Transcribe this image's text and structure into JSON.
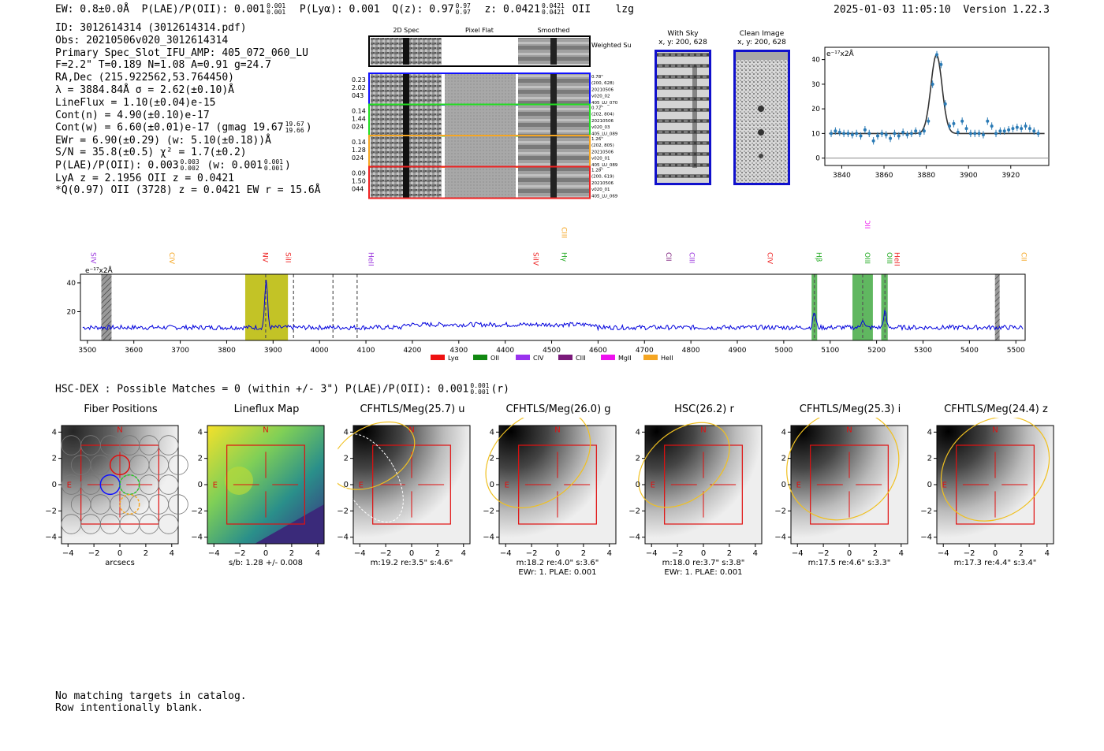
{
  "header": {
    "ew": "EW: 0.8±0.0Å",
    "plae_label": "P(LAE)/P(OII): 0.001",
    "plae_hi": "0.001",
    "plae_lo": "0.001",
    "plya": "P(Lyα): 0.001",
    "qz_label": "Q(z): 0.97",
    "qz_hi": "0.97",
    "qz_lo": "0.97",
    "z_label": "z: 0.0421",
    "z_hi": "0.0421",
    "z_lo": "0.0421",
    "z_line": "OII",
    "tag": "lzg",
    "timestamp": "2025-01-03 11:05:10",
    "version": "Version 1.22.3"
  },
  "info": {
    "id": "ID: 3012614314 (3012614314.pdf)",
    "obs": "Obs: 20210506v020_3012614314",
    "primary": "Primary Spec_Slot_IFU_AMP: 405_072_060_LU",
    "params": "F=2.2\"  T=0.189  N=1.08  A=0.91  g=24.7",
    "radec": "RA,Dec (215.922562,53.764450)",
    "lambda": "λ = 3884.84Å  σ = 2.62(±0.10)Å",
    "lineflux": "LineFlux = 1.10(±0.04)e-15",
    "contn": "Cont(n) = 4.90(±0.10)e-17",
    "contw": "Cont(w) = 6.60(±0.01)e-17 (gmag 19.67",
    "contw_hi": "19.67",
    "contw_lo": "19.66",
    "contw_close": ")",
    "ewr": "EWr = 6.90(±0.29) (w: 5.10(±0.18))Å",
    "sn": "S/N = 35.8(±0.5)  χ² = 1.7(±0.2)",
    "plae2": "P(LAE)/P(OII): 0.003",
    "plae2_hi": "0.003",
    "plae2_lo": "0.002",
    "plae2_w": "(w: 0.001",
    "plae2_w_hi": "0.001",
    "plae2_w_lo": "0.001",
    "plae2_close": ")",
    "lya": "LyA z = 2.1956  OII z = 0.0421",
    "q": "*Q(0.97) OII (3728) z = 0.0421  EW r = 15.6Å"
  },
  "spec2d": {
    "col_labels": [
      "2D Spec",
      "Pixel Flat",
      "Smoothed"
    ],
    "sum_label": "Weighted Sum",
    "rows": [
      {
        "left": [
          "0.23",
          "2.02",
          "043"
        ],
        "right": [
          "0.78\"",
          "(200, 628)",
          "20210506",
          "v020_02",
          "405_LU_070"
        ],
        "color": "#1010ff"
      },
      {
        "left": [
          "0.14",
          "1.44",
          "024"
        ],
        "right": [
          "0.72\"",
          "(202, 804)",
          "20210506",
          "v020_03",
          "405_LU_089"
        ],
        "color": "#22dd22"
      },
      {
        "left": [
          "0.14",
          "1.28",
          "024"
        ],
        "right": [
          "1.26\"",
          "(202, 805)",
          "20210506",
          "v020_01",
          "405_LU_089"
        ],
        "color": "#f5a623"
      },
      {
        "left": [
          "0.09",
          "1.50",
          "044"
        ],
        "right": [
          "1.28\"",
          "(200, 619)",
          "20210506",
          "v020_01",
          "405_LU_069"
        ],
        "color": "#ee2222"
      }
    ]
  },
  "cutouts": {
    "with_sky": {
      "title": "With Sky",
      "coords": "x, y: 200, 628"
    },
    "clean": {
      "title": "Clean Image",
      "coords": "x, y: 200, 628"
    }
  },
  "fit_plot": {
    "unit_label": "e⁻¹⁷x2Å",
    "chart_data": {
      "type": "scatter",
      "x_ticks": [
        3840,
        3860,
        3880,
        3900,
        3920
      ],
      "y_ticks": [
        0,
        10,
        20,
        30,
        40
      ],
      "xlim": [
        3832,
        3938
      ],
      "ylim": [
        -3,
        45
      ],
      "points_x": [
        3835,
        3837,
        3839,
        3841,
        3843,
        3845,
        3847,
        3849,
        3851,
        3853,
        3855,
        3857,
        3859,
        3861,
        3863,
        3865,
        3867,
        3869,
        3871,
        3873,
        3875,
        3877,
        3879,
        3881,
        3883,
        3885,
        3887,
        3889,
        3891,
        3893,
        3895,
        3897,
        3899,
        3901,
        3903,
        3905,
        3907,
        3909,
        3911,
        3913,
        3915,
        3917,
        3919,
        3921,
        3923,
        3925,
        3927,
        3929,
        3931,
        3933
      ],
      "points_y": [
        10,
        11,
        10.5,
        10,
        10,
        9.5,
        10,
        9,
        11.5,
        10,
        7,
        9,
        10,
        9.5,
        8,
        10,
        9,
        10.5,
        9.5,
        10,
        11,
        10,
        11,
        15,
        30,
        42,
        38,
        22,
        13,
        14,
        10.5,
        15,
        12,
        10,
        10,
        10,
        9.5,
        15,
        13,
        10,
        11,
        11,
        11.5,
        12,
        12.5,
        12,
        13,
        12,
        11,
        10
      ],
      "fit_baseline": 10,
      "fit_center": 3884.84,
      "fit_sigma": 2.62,
      "fit_amp": 32
    }
  },
  "spectrum": {
    "unit_label": "e⁻¹⁷x2Å",
    "chart_data": {
      "type": "line",
      "xlim": [
        3485,
        5520
      ],
      "ylim": [
        0,
        46
      ],
      "x_ticks": [
        3500,
        3600,
        3700,
        3800,
        3900,
        4000,
        4100,
        4200,
        4300,
        4400,
        4500,
        4600,
        4700,
        4800,
        4900,
        5000,
        5100,
        5200,
        5300,
        5400,
        5500
      ],
      "y_ticks": [
        20,
        40
      ],
      "line_labels": [
        {
          "text": "SIV",
          "x": 3503,
          "color": "#9933dd",
          "row": 2
        },
        {
          "text": "CIV",
          "x": 3672,
          "color": "#f5a623",
          "row": 2
        },
        {
          "text": "NV",
          "x": 3873,
          "color": "#ee2222",
          "row": 2
        },
        {
          "text": "SiII",
          "x": 3922,
          "color": "#ee2222",
          "row": 2
        },
        {
          "text": "HeII",
          "x": 4101,
          "color": "#9933dd",
          "row": 2
        },
        {
          "text": "SiIV",
          "x": 4456,
          "color": "#ee2222",
          "row": 2
        },
        {
          "text": "CIII",
          "x": 4517,
          "color": "#f5a623",
          "row": 0
        },
        {
          "text": "Hγ",
          "x": 4517,
          "color": "#22aa22",
          "row": 2
        },
        {
          "text": "CII",
          "x": 4742,
          "color": "#7a1a7a",
          "row": 2
        },
        {
          "text": "CIII",
          "x": 4792,
          "color": "#9933dd",
          "row": 2
        },
        {
          "text": "CIV",
          "x": 4960,
          "color": "#ee2222",
          "row": 2
        },
        {
          "text": "Hβ",
          "x": 5066,
          "color": "#22aa22",
          "row": 2
        },
        {
          "text": "OII",
          "x": 5170,
          "color": "#ee22ee",
          "row": 1
        },
        {
          "text": "OIII",
          "x": 5170,
          "color": "#22aa22",
          "row": 2
        },
        {
          "text": "OIII",
          "x": 5218,
          "color": "#22aa22",
          "row": 2
        },
        {
          "text": "HeII",
          "x": 5234,
          "color": "#ee2222",
          "row": 2
        },
        {
          "text": "CII",
          "x": 5507,
          "color": "#f5a623",
          "row": 2
        }
      ],
      "bands": [
        {
          "x0": 3840,
          "x1": 3932,
          "color": "#b8b800"
        },
        {
          "x0": 5060,
          "x1": 5072,
          "color": "#44aa44"
        },
        {
          "x0": 5148,
          "x1": 5192,
          "color": "#44aa44"
        },
        {
          "x0": 5210,
          "x1": 5224,
          "color": "#44aa44"
        }
      ],
      "hatch": [
        {
          "x0": 3530,
          "x1": 3552
        },
        {
          "x0": 5455,
          "x1": 5465
        }
      ],
      "dashed": [
        3884,
        3944,
        4029,
        4081,
        5066,
        5170,
        5218
      ],
      "peaks": [
        {
          "x": 3885,
          "h": 42,
          "w": 3
        },
        {
          "x": 5066,
          "h": 20,
          "w": 3
        },
        {
          "x": 5170,
          "h": 15,
          "w": 3
        },
        {
          "x": 5218,
          "h": 20,
          "w": 3
        }
      ],
      "continuum": 9
    },
    "legend": [
      {
        "label": "Lyα",
        "color": "#ee1111"
      },
      {
        "label": "OII",
        "color": "#118811"
      },
      {
        "label": "CIV",
        "color": "#9933ee"
      },
      {
        "label": "CIII",
        "color": "#7a1a7a"
      },
      {
        "label": "MgII",
        "color": "#ee11ee"
      },
      {
        "label": "HeII",
        "color": "#f5a623"
      }
    ]
  },
  "hsc": {
    "title": "HSC-DEX : Possible Matches = 0 (within +/- 3\")  P(LAE)/P(OII): 0.001",
    "hi": "0.001",
    "lo": "0.001",
    "band": "(r)"
  },
  "panels": [
    {
      "title": "Fiber Positions",
      "cap1": "arcsecs",
      "cap2": ""
    },
    {
      "title": "Lineflux Map",
      "cap1": "s/b: 1.28 +/- 0.008",
      "cap2": ""
    },
    {
      "title": "CFHTLS/Meg(25.7) u",
      "cap1": "m:19.2  re:3.5\"  s:4.6\"",
      "cap2": ""
    },
    {
      "title": "CFHTLS/Meg(26.0) g",
      "cap1": "m:18.2  re:4.0\"  s:3.6\"",
      "cap2": "EWr: 1. PLAE: 0.001"
    },
    {
      "title": "HSC(26.2) r",
      "cap1": "m:18.0  re:3.7\"  s:3.8\"",
      "cap2": "EWr: 1. PLAE: 0.001"
    },
    {
      "title": "CFHTLS/Meg(25.3) i",
      "cap1": "m:17.5  re:4.6\"  s:3.3\"",
      "cap2": ""
    },
    {
      "title": "CFHTLS/Meg(24.4) z",
      "cap1": "m:17.3  re:4.4\"  s:3.4\"",
      "cap2": ""
    }
  ],
  "panel_axes": {
    "ticks": [
      "−4",
      "−2",
      "0",
      "2",
      "4"
    ],
    "y_ticks": [
      "4",
      "2",
      "0",
      "−2",
      "−4"
    ],
    "n": "N",
    "e": "E"
  },
  "footer": {
    "line1": "No matching targets in catalog.",
    "line2": "Row intentionally blank."
  }
}
